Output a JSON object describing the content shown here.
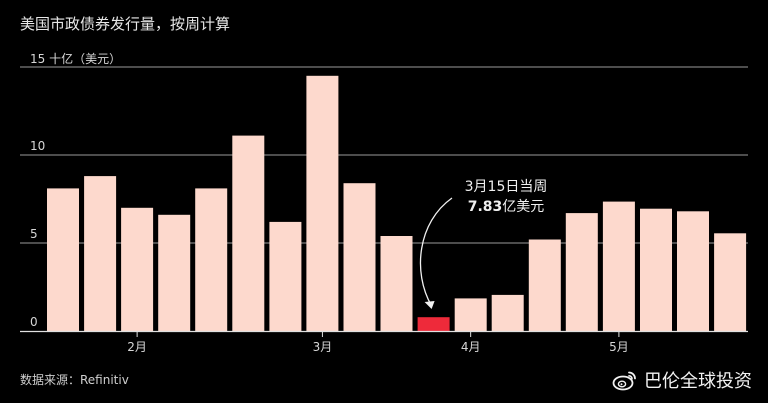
{
  "title": "美国市政债券发行量，按周计算",
  "footer": "数据来源：Refinitiv",
  "watermark": "巴伦全球投资",
  "colors": {
    "bar": "#fdd9cd",
    "highlight": "#ee2a3a",
    "grid": "#9a9a9a",
    "text": "#d6d6d6",
    "bg": "#000000"
  },
  "chart_data": {
    "type": "bar",
    "ylabel": "15 十亿（美元）",
    "ylim": [
      0,
      15
    ],
    "yticks": [
      0,
      5,
      10
    ],
    "values": [
      8.1,
      8.8,
      7.0,
      6.6,
      8.1,
      11.1,
      6.2,
      14.5,
      8.4,
      5.4,
      0.783,
      1.85,
      2.05,
      5.2,
      6.7,
      7.35,
      6.95,
      6.8,
      5.55
    ],
    "highlight_index": 10,
    "xticks": [
      {
        "label": "2月",
        "at": 2
      },
      {
        "label": "3月",
        "at": 7
      },
      {
        "label": "4月",
        "at": 11
      },
      {
        "label": "5月",
        "at": 15
      }
    ],
    "annotation": {
      "index": 10,
      "line1": "3月15日当周",
      "value": "7.83",
      "unit": "亿美元"
    },
    "grid": true,
    "legend": "none"
  }
}
